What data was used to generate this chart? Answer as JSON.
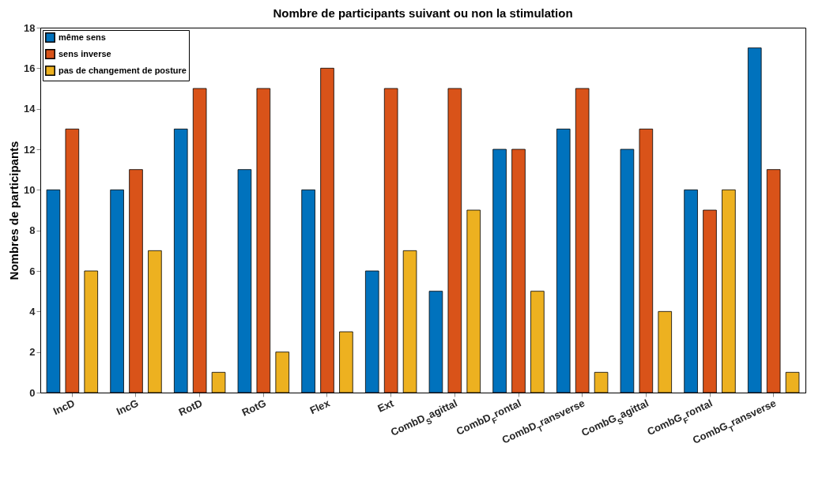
{
  "chart_data": {
    "type": "bar",
    "title": "Nombre de participants suivant ou non la stimulation",
    "ylabel": "Nombres de participants",
    "categories": [
      "IncD",
      "IncG",
      "RotD",
      "RotG",
      "Flex",
      "Ext",
      "CombD$_{S}$agittal",
      "CombD$_{F}$rontal",
      "CombD$_{T}$ransverse",
      "CombG$_{S}$agittal",
      "CombG$_{F}$rontal",
      "CombG$_{T}$ransverse"
    ],
    "series": [
      {
        "name": "même sens",
        "color": "#0072bd",
        "values": [
          10,
          10,
          13,
          11,
          10,
          6,
          5,
          12,
          13,
          12,
          10,
          17
        ]
      },
      {
        "name": "sens inverse",
        "color": "#d95319",
        "values": [
          13,
          11,
          15,
          15,
          16,
          15,
          15,
          12,
          15,
          13,
          9,
          11
        ]
      },
      {
        "name": "pas de changement de posture",
        "color": "#edb120",
        "values": [
          6,
          7,
          1,
          2,
          3,
          7,
          9,
          5,
          1,
          4,
          10,
          1
        ]
      }
    ],
    "ylim": [
      0,
      18
    ],
    "yticks": [
      0,
      2,
      4,
      6,
      8,
      10,
      12,
      14,
      16,
      18
    ],
    "grid": false,
    "legend": "top left"
  }
}
